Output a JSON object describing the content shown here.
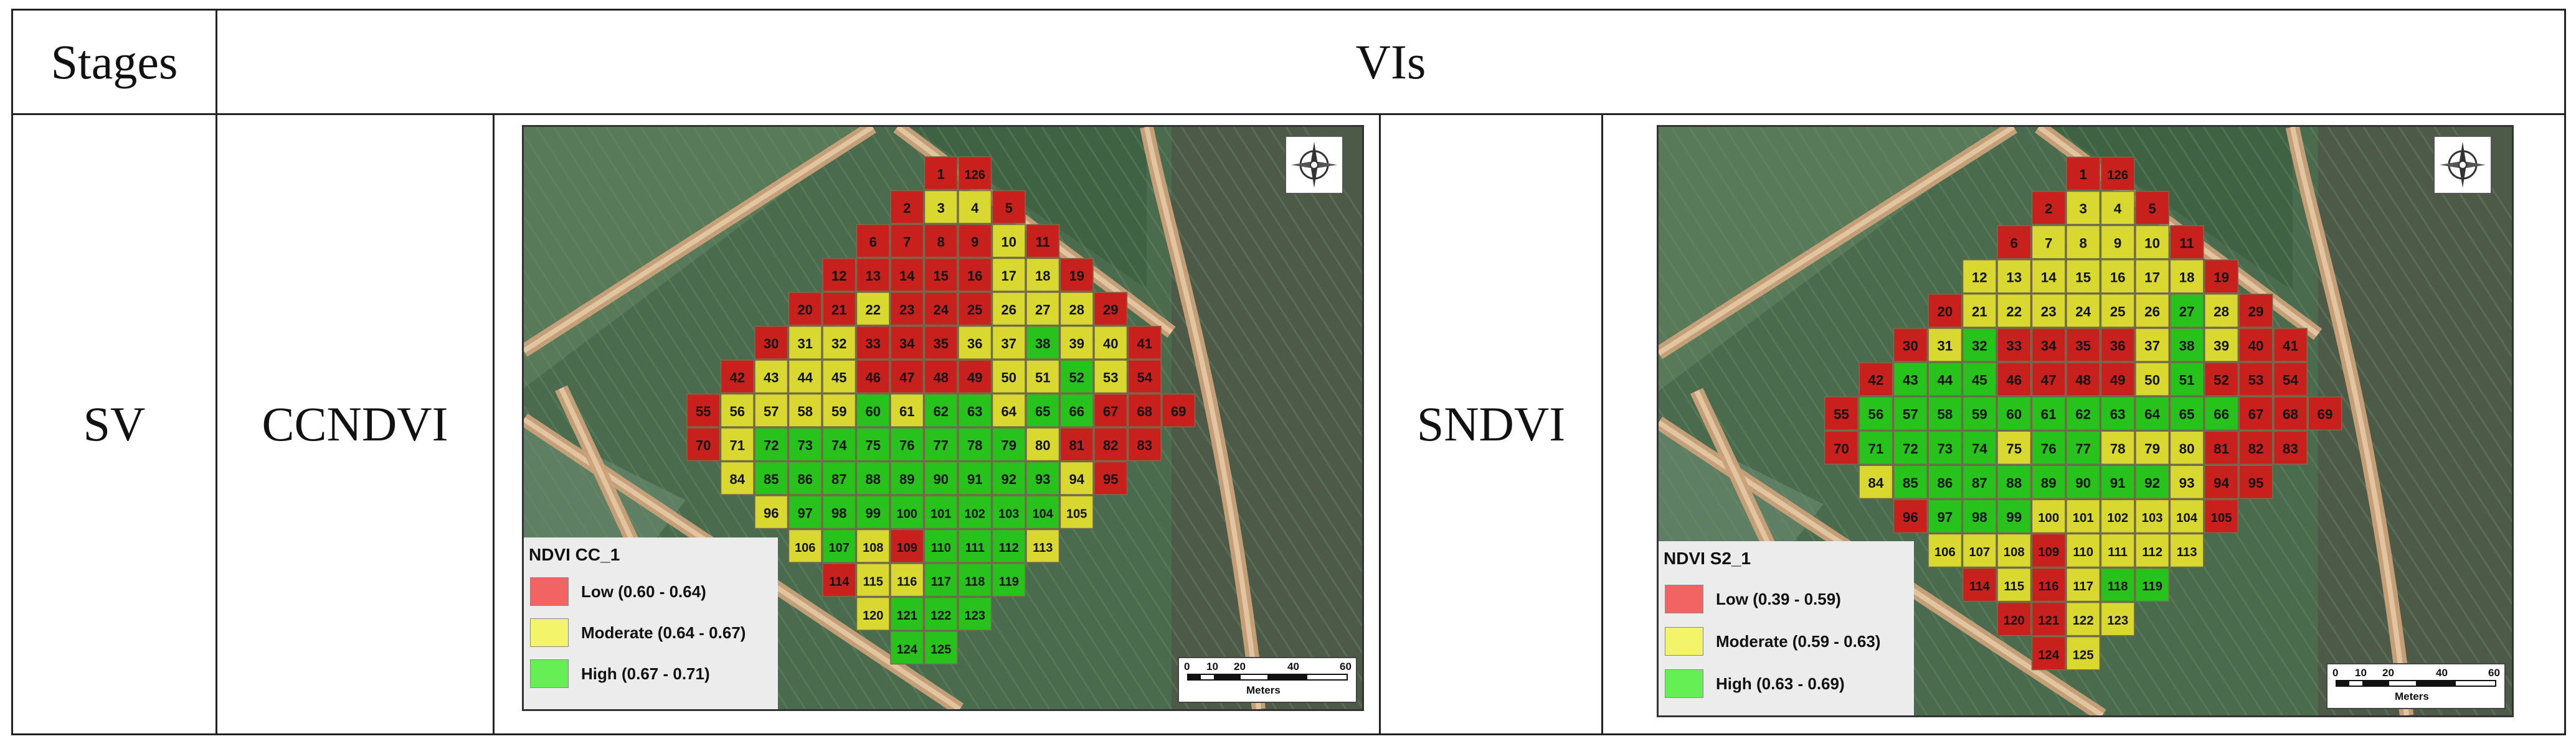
{
  "table": {
    "headers": {
      "stages": "Stages",
      "vis": "VIs"
    },
    "row": {
      "stage": "SV",
      "vi_left": "CCNDVI",
      "vi_right": "SNDVI"
    }
  },
  "maps": [
    {
      "legend_title": "NDVI CC_1",
      "classes": [
        {
          "label": "Low (0.60 - 0.64)",
          "color": "#f26464"
        },
        {
          "label": "Moderate (0.64 - 0.67)",
          "color": "#f4f46a"
        },
        {
          "label": "High (0.67 - 0.71)",
          "color": "#66ee55"
        }
      ],
      "scale_ticks": [
        "0",
        "10",
        "20",
        "40",
        "60"
      ],
      "scale_unit": "Meters",
      "plot_classes": {
        "1": "L",
        "126": "L",
        "2": "L",
        "3": "M",
        "4": "M",
        "5": "L",
        "6": "L",
        "7": "L",
        "8": "L",
        "9": "L",
        "10": "M",
        "11": "L",
        "12": "L",
        "13": "L",
        "14": "L",
        "15": "L",
        "16": "L",
        "17": "M",
        "18": "M",
        "19": "L",
        "20": "L",
        "21": "L",
        "22": "M",
        "23": "L",
        "24": "L",
        "25": "L",
        "26": "M",
        "27": "M",
        "28": "M",
        "29": "L",
        "30": "L",
        "31": "M",
        "32": "M",
        "33": "L",
        "34": "L",
        "35": "L",
        "36": "M",
        "37": "M",
        "38": "H",
        "39": "M",
        "40": "M",
        "41": "L",
        "42": "L",
        "43": "M",
        "44": "M",
        "45": "M",
        "46": "L",
        "47": "L",
        "48": "L",
        "49": "L",
        "50": "M",
        "51": "M",
        "52": "H",
        "53": "M",
        "54": "L",
        "55": "L",
        "56": "M",
        "57": "M",
        "58": "M",
        "59": "M",
        "60": "H",
        "61": "M",
        "62": "H",
        "63": "H",
        "64": "M",
        "65": "H",
        "66": "H",
        "67": "L",
        "68": "L",
        "69": "L",
        "70": "L",
        "71": "M",
        "72": "H",
        "73": "H",
        "74": "H",
        "75": "H",
        "76": "H",
        "77": "H",
        "78": "H",
        "79": "H",
        "80": "M",
        "81": "L",
        "82": "L",
        "83": "L",
        "84": "M",
        "85": "H",
        "86": "H",
        "87": "H",
        "88": "H",
        "89": "H",
        "90": "H",
        "91": "H",
        "92": "H",
        "93": "H",
        "94": "M",
        "95": "L",
        "96": "M",
        "97": "H",
        "98": "H",
        "99": "H",
        "100": "H",
        "101": "H",
        "102": "H",
        "103": "H",
        "104": "H",
        "105": "M",
        "106": "M",
        "107": "H",
        "108": "M",
        "109": "L",
        "110": "H",
        "111": "H",
        "112": "H",
        "113": "M",
        "114": "L",
        "115": "M",
        "116": "M",
        "117": "H",
        "118": "H",
        "119": "H",
        "120": "M",
        "121": "H",
        "122": "H",
        "123": "H",
        "124": "H",
        "125": "H"
      }
    },
    {
      "legend_title": "NDVI S2_1",
      "classes": [
        {
          "label": "Low (0.39 - 0.59)",
          "color": "#f26464"
        },
        {
          "label": "Moderate (0.59 - 0.63)",
          "color": "#f4f46a"
        },
        {
          "label": "High (0.63 - 0.69)",
          "color": "#66ee55"
        }
      ],
      "scale_ticks": [
        "0",
        "10",
        "20",
        "40",
        "60"
      ],
      "scale_unit": "Meters",
      "plot_classes": {
        "1": "L",
        "126": "L",
        "2": "L",
        "3": "M",
        "4": "M",
        "5": "L",
        "6": "L",
        "7": "M",
        "8": "M",
        "9": "M",
        "10": "M",
        "11": "L",
        "12": "M",
        "13": "M",
        "14": "M",
        "15": "M",
        "16": "M",
        "17": "M",
        "18": "M",
        "19": "L",
        "20": "L",
        "21": "M",
        "22": "M",
        "23": "M",
        "24": "M",
        "25": "M",
        "26": "M",
        "27": "H",
        "28": "M",
        "29": "L",
        "30": "L",
        "31": "M",
        "32": "H",
        "33": "L",
        "34": "L",
        "35": "L",
        "36": "L",
        "37": "M",
        "38": "H",
        "39": "M",
        "40": "L",
        "41": "L",
        "42": "L",
        "43": "H",
        "44": "H",
        "45": "H",
        "46": "L",
        "47": "L",
        "48": "L",
        "49": "L",
        "50": "M",
        "51": "H",
        "52": "L",
        "53": "L",
        "54": "L",
        "55": "L",
        "56": "H",
        "57": "H",
        "58": "H",
        "59": "H",
        "60": "H",
        "61": "H",
        "62": "H",
        "63": "H",
        "64": "H",
        "65": "H",
        "66": "H",
        "67": "L",
        "68": "L",
        "69": "L",
        "70": "L",
        "71": "H",
        "72": "H",
        "73": "H",
        "74": "H",
        "75": "M",
        "76": "H",
        "77": "H",
        "78": "M",
        "79": "M",
        "80": "M",
        "81": "L",
        "82": "L",
        "83": "L",
        "84": "M",
        "85": "H",
        "86": "H",
        "87": "H",
        "88": "H",
        "89": "H",
        "90": "H",
        "91": "H",
        "92": "H",
        "93": "M",
        "94": "L",
        "95": "L",
        "96": "L",
        "97": "H",
        "98": "H",
        "99": "H",
        "100": "M",
        "101": "M",
        "102": "M",
        "103": "M",
        "104": "M",
        "105": "L",
        "106": "M",
        "107": "M",
        "108": "M",
        "109": "L",
        "110": "M",
        "111": "M",
        "112": "M",
        "113": "M",
        "114": "L",
        "115": "M",
        "116": "L",
        "117": "M",
        "118": "H",
        "119": "H",
        "120": "L",
        "121": "L",
        "122": "M",
        "123": "M",
        "124": "L",
        "125": "M"
      }
    }
  ]
}
